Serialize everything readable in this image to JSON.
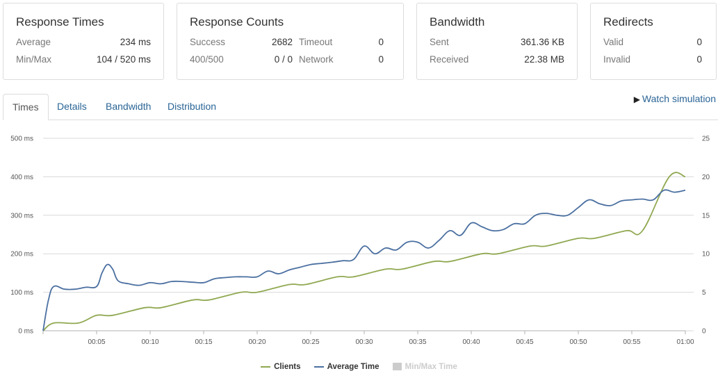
{
  "cards": {
    "response_times": {
      "title": "Response Times",
      "average_label": "Average",
      "average_value": "234 ms",
      "minmax_label": "Min/Max",
      "minmax_value": "104 / 520 ms"
    },
    "response_counts": {
      "title": "Response Counts",
      "success_label": "Success",
      "success_value": "2682",
      "timeout_label": "Timeout",
      "timeout_value": "0",
      "err_label": "400/500",
      "err_value": "0 / 0",
      "network_label": "Network",
      "network_value": "0"
    },
    "bandwidth": {
      "title": "Bandwidth",
      "sent_label": "Sent",
      "sent_value": "361.36 KB",
      "received_label": "Received",
      "received_value": "22.38 MB"
    },
    "redirects": {
      "title": "Redirects",
      "valid_label": "Valid",
      "valid_value": "0",
      "invalid_label": "Invalid",
      "invalid_value": "0"
    }
  },
  "tabs": [
    "Times",
    "Details",
    "Bandwidth",
    "Distribution"
  ],
  "watch_label": "Watch simulation",
  "colors": {
    "clients": "#8fa850",
    "average": "#4a6fa0",
    "minmax": "#cccccc",
    "grid": "#d8d8d8",
    "link": "#2a6496"
  },
  "chart_data": {
    "type": "line",
    "x_ticks": [
      "00:05",
      "00:10",
      "00:15",
      "00:20",
      "00:25",
      "00:30",
      "00:35",
      "00:40",
      "00:45",
      "00:50",
      "00:55",
      "01:00"
    ],
    "xlim": [
      0,
      60
    ],
    "y_left_ticks": [
      "0 ms",
      "100 ms",
      "200 ms",
      "300 ms",
      "400 ms",
      "500 ms"
    ],
    "y_left_lim": [
      0,
      500
    ],
    "y_right_ticks": [
      "0",
      "5",
      "10",
      "15",
      "20",
      "25"
    ],
    "y_right_lim": [
      0,
      25
    ],
    "legend": [
      "Clients",
      "Average Time",
      "Min/Max Time"
    ],
    "legend_position": "bottom",
    "series": [
      {
        "name": "Clients",
        "axis": "right",
        "x": [
          0,
          1,
          3.3,
          5,
          6.5,
          9.5,
          11,
          14,
          15.5,
          18.5,
          20,
          23,
          24.5,
          27.5,
          29,
          32,
          33.5,
          36.5,
          38,
          41,
          42.5,
          45.5,
          47,
          50,
          51.5,
          54.5,
          56,
          58.5,
          60
        ],
        "y": [
          0,
          1,
          1,
          2,
          2,
          3,
          3,
          4,
          4,
          5,
          5,
          6,
          6,
          7,
          7,
          8,
          8,
          9,
          9,
          10,
          10,
          11,
          11,
          12,
          12,
          13,
          13,
          20,
          20
        ]
      },
      {
        "name": "Average Time",
        "axis": "left",
        "x": [
          0,
          0.5,
          1,
          2,
          3,
          4,
          5,
          5.5,
          6,
          6.5,
          7,
          8,
          9,
          10,
          11,
          12,
          13,
          14,
          15,
          16,
          17,
          18,
          19,
          20,
          21,
          22,
          23,
          24,
          25,
          26,
          27,
          28,
          29,
          30,
          31,
          32,
          33,
          34,
          35,
          36,
          37,
          38,
          39,
          40,
          41,
          42,
          43,
          44,
          45,
          46,
          47,
          48,
          49,
          50,
          51,
          52,
          53,
          54,
          55,
          56,
          57,
          58,
          59,
          60
        ],
        "y": [
          0,
          80,
          115,
          108,
          108,
          113,
          115,
          150,
          172,
          160,
          130,
          122,
          118,
          125,
          122,
          128,
          128,
          126,
          125,
          135,
          138,
          140,
          140,
          140,
          155,
          148,
          158,
          165,
          172,
          175,
          178,
          182,
          185,
          220,
          200,
          215,
          210,
          230,
          230,
          215,
          235,
          260,
          248,
          280,
          270,
          260,
          263,
          278,
          278,
          300,
          305,
          300,
          300,
          320,
          340,
          330,
          325,
          337,
          340,
          342,
          340,
          365,
          360,
          365
        ]
      }
    ]
  }
}
